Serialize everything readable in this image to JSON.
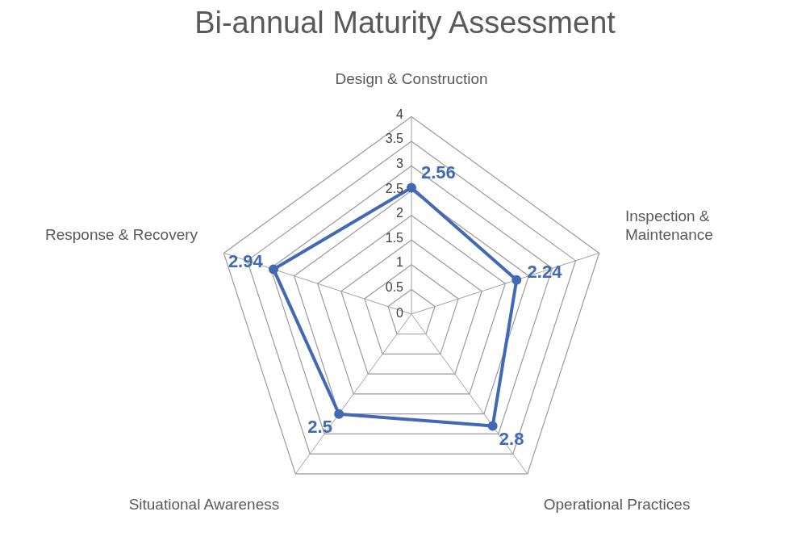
{
  "chart_data": {
    "type": "radar",
    "title": "Bi-annual Maturity Assessment",
    "categories": [
      "Design & Construction",
      "Inspection & Maintenance",
      "Operational Practices",
      "Situational Awareness",
      "Response & Recovery"
    ],
    "series": [
      {
        "color": "#4169b5",
        "values": [
          2.56,
          2.24,
          2.8,
          2.5,
          2.94
        ]
      }
    ],
    "ylim": [
      0,
      4
    ],
    "yticks": [
      0,
      0.5,
      1,
      1.5,
      2,
      2.5,
      3,
      3.5,
      4
    ],
    "grid": true,
    "legend": false,
    "marker": "circle",
    "data_labels": true
  }
}
